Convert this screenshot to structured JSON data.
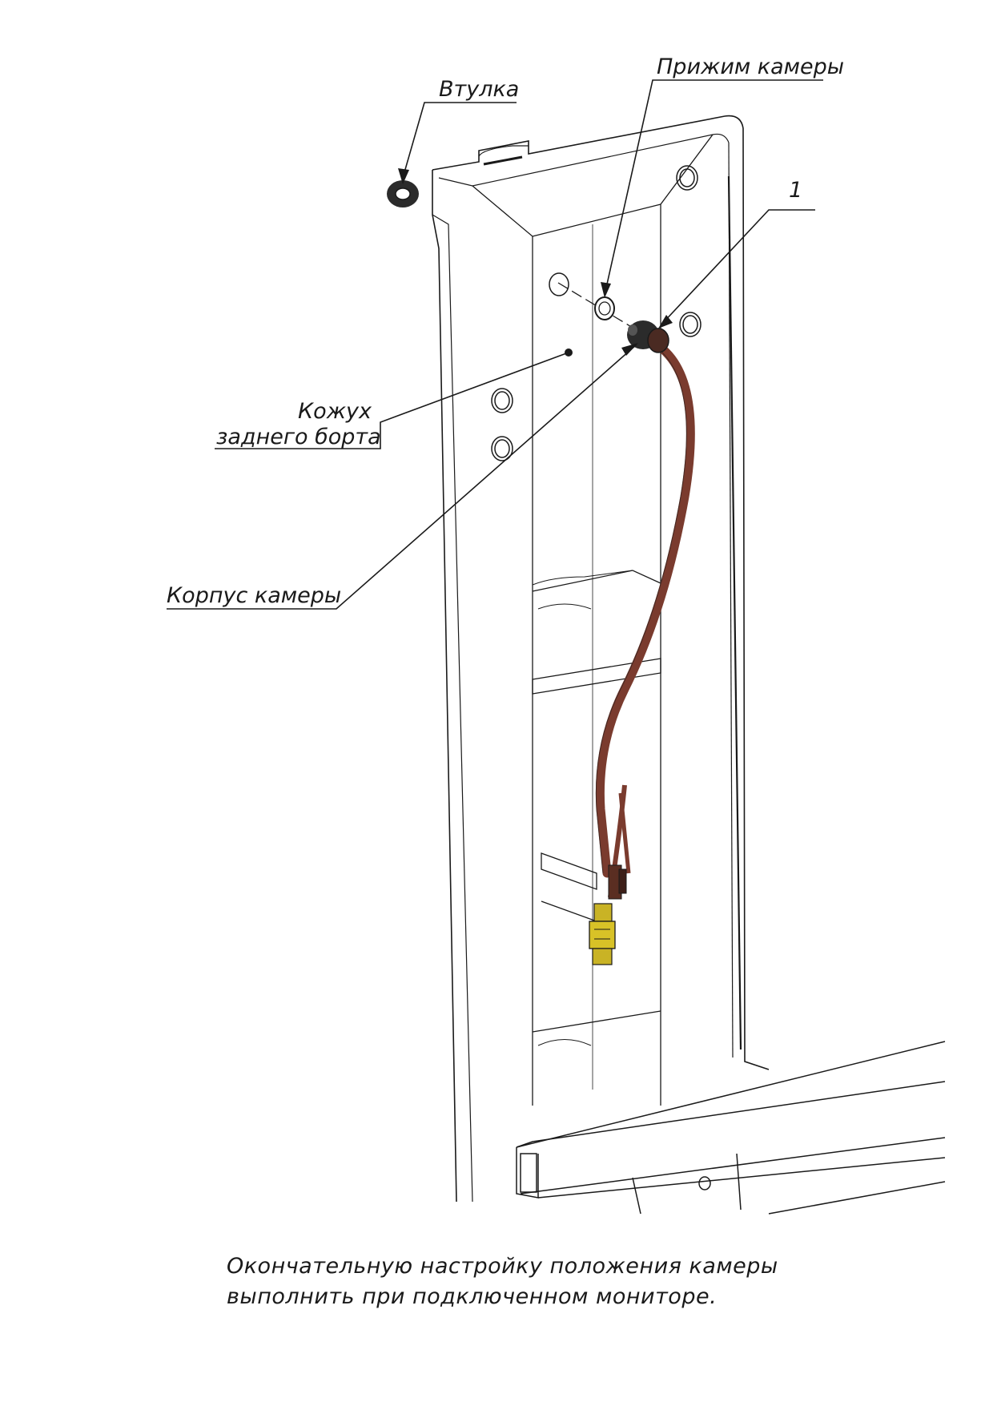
{
  "labels": {
    "bushing": "Втулка",
    "camera_clamp": "Прижим камеры",
    "item_1": "1",
    "cover_line1": "Кожух",
    "cover_line2": "заднего борта",
    "camera_body": "Корпус камеры"
  },
  "note": {
    "line1": "Окончательную настройку положения камеры",
    "line2": "выполнить при подключенном мониторе."
  },
  "colors": {
    "cable": "#7a3b2e",
    "connector": "#d8c227",
    "outline": "#1a1a1a"
  }
}
